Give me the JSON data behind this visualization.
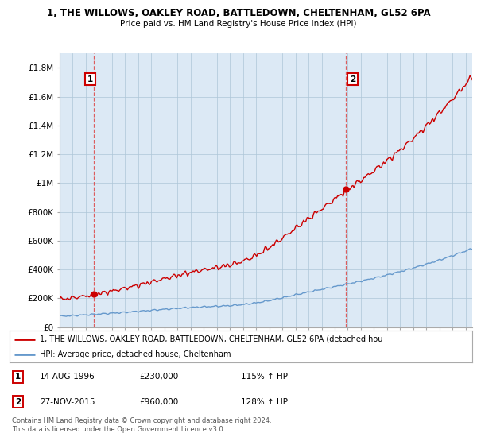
{
  "title": "1, THE WILLOWS, OAKLEY ROAD, BATTLEDOWN, CHELTENHAM, GL52 6PA",
  "subtitle": "Price paid vs. HM Land Registry's House Price Index (HPI)",
  "ylim": [
    0,
    1900000
  ],
  "yticks": [
    0,
    200000,
    400000,
    600000,
    800000,
    1000000,
    1200000,
    1400000,
    1600000,
    1800000
  ],
  "ytick_labels": [
    "£0",
    "£200K",
    "£400K",
    "£600K",
    "£800K",
    "£1M",
    "£1.2M",
    "£1.4M",
    "£1.6M",
    "£1.8M"
  ],
  "sale1_date": "14-AUG-1996",
  "sale1_price": 230000,
  "sale1_label": "115% ↑ HPI",
  "sale2_date": "27-NOV-2015",
  "sale2_price": 960000,
  "sale2_label": "128% ↑ HPI",
  "red_line_color": "#cc0000",
  "blue_line_color": "#6699cc",
  "marker_color": "#cc0000",
  "vline_color": "#dd4444",
  "legend_label1": "1, THE WILLOWS, OAKLEY ROAD, BATTLEDOWN, CHELTENHAM, GL52 6PA (detached hou",
  "legend_label2": "HPI: Average price, detached house, Cheltenham",
  "footer": "Contains HM Land Registry data © Crown copyright and database right 2024.\nThis data is licensed under the Open Government Licence v3.0.",
  "background_color": "#ffffff",
  "plot_bg_color": "#dce9f5",
  "grid_color": "#aec6d8"
}
